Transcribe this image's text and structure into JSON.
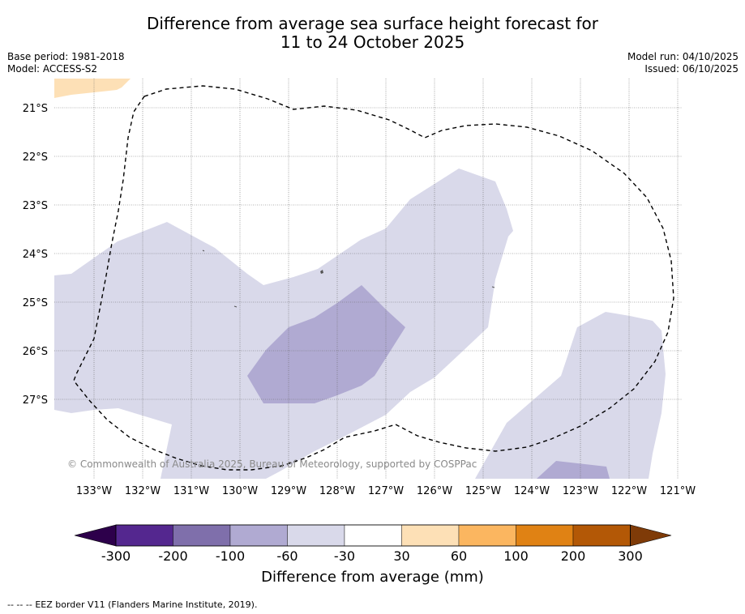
{
  "header": {
    "title_line1": "Difference from average sea surface height forecast for",
    "title_line2": "11 to 24 October 2025",
    "base_period": "Base period: 1981-2018",
    "model": "Model: ACCESS-S2",
    "model_run": "Model run: 04/10/2025",
    "issued": "Issued: 06/10/2025"
  },
  "map": {
    "lat_labels": [
      "21°S",
      "22°S",
      "23°S",
      "24°S",
      "25°S",
      "26°S",
      "27°S"
    ],
    "lon_labels": [
      "133°W",
      "132°W",
      "131°W",
      "130°W",
      "129°W",
      "128°W",
      "127°W",
      "126°W",
      "125°W",
      "124°W",
      "123°W",
      "122°W",
      "121°W"
    ],
    "copyright": "© Commonwealth of Australia 2025, Bureau of Meteorology, supported by COSPPac",
    "colors": {
      "band_-60_-30": "#d9d9ea",
      "band_-100_-60": "#b0aad2",
      "band_30_60": "#fde0b6",
      "eez_line": "#000000",
      "grid": "#666666"
    }
  },
  "colorbar": {
    "title": "Difference from average (mm)",
    "tick_labels": [
      "-300",
      "-200",
      "-100",
      "-60",
      "-30",
      "30",
      "60",
      "100",
      "200",
      "300"
    ],
    "segment_colors": [
      "#54278f",
      "#7f6fab",
      "#b0aad2",
      "#d9d9ea",
      "#ffffff",
      "#fde0b6",
      "#fbb660",
      "#e08214",
      "#b35806"
    ],
    "under_color": "#2d004b",
    "over_color": "#7f3b08"
  },
  "footer": {
    "legend_symbol": "-- -- --",
    "legend_text": "EEZ border V11 (Flanders Marine Institute, 2019)."
  }
}
